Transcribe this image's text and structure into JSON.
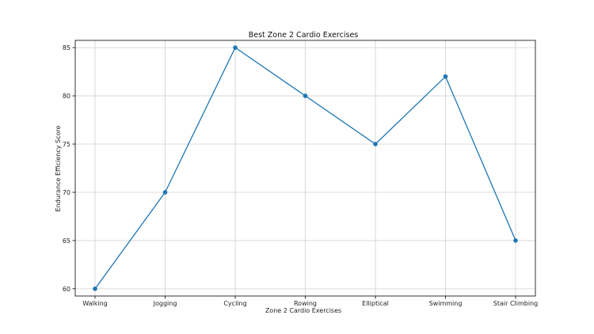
{
  "chart_data": {
    "type": "line",
    "title": "Best Zone 2 Cardio Exercises",
    "xlabel": "Zone 2 Cardio Exercises",
    "ylabel": "Endurance Efficiency Score",
    "categories": [
      "Walking",
      "Jogging",
      "Cycling",
      "Rowing",
      "Elliptical",
      "Swimming",
      "Stair Climbing"
    ],
    "series": [
      {
        "values": [
          60,
          70,
          85,
          80,
          75,
          82,
          65
        ]
      }
    ],
    "ylim": [
      59.25,
      85.75
    ],
    "yticks": [
      60,
      65,
      70,
      75,
      80,
      85
    ],
    "grid": true,
    "line_color": "#1f77b4",
    "marker": "circle"
  }
}
